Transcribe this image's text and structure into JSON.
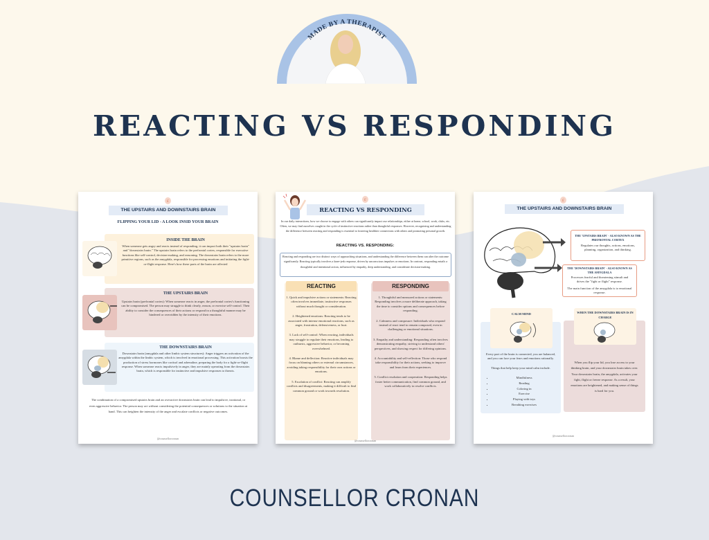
{
  "header": {
    "badge_text": "MADE BY A THERAPIST",
    "title": "REACTING VS RESPONDING"
  },
  "footer": {
    "brand": "COUNSELLOR CRONAN"
  },
  "colors": {
    "cream": "#fdf8ec",
    "grey_blue": "#e3e6ec",
    "navy": "#1e3350",
    "badge_blue": "#a9c3e6"
  },
  "pages": [
    {
      "title": "THE UPSTAIRS AND DOWNSTAIRS BRAIN",
      "subtitle": "FLIPPING YOUR LID - A LOOK INSID YOUR BRAIN",
      "sections": [
        {
          "heading": "INSIDE THE BRAIN",
          "text": "When someone gets angry and reacts instead of responding, it can impact both their \"upstairs brain\" and \"downstairs brain.\" The upstairs brain refers to the prefrontal cortex, responsible for executive functions like self-control, decision-making, and reasoning. The downstairs brain refers to the more primitive regions, such as the amygdala, responsible for processing emotions and initiating the fight-or-flight response. Here's how these parts of the brain are affected"
        },
        {
          "heading": "THE UPSTAIRS BRAIN",
          "text": "Upstairs brain (prefrontal cortex): When someone reacts in anger, the prefrontal cortex's functioning can be compromised. The person may struggle to think clearly, reason, or exercise self-control. Their ability to consider the consequences of their actions or respond in a thoughtful manner may be hindered or overridden by the intensity of their emotions."
        },
        {
          "heading": "THE DOWNSTAIRS BRAIN",
          "text": "Downstairs brain (amygdala and other limbic system structures): Anger triggers an activation of the amygdala within the limbic system, which is involved in emotional processing. This activation boosts the production of stress hormones like cortisol and adrenaline, preparing the body for a fight-or-flight response. When someone reacts impulsively in anger, they are mainly operating from the downstairs brain, which is responsible for instinctive and impulsive responses to threats."
        }
      ],
      "closing": "The combination of a compromised upstairs brain and an overactive downstairs brain can lead to impulsive, irrational, or even aggressive behavior. The person may act without considering the potential consequences or solutions to the situation at hand. This can heighten the intensity of the anger and escalate conflicts or negative outcomes.",
      "handle": "@counsellorcronan"
    },
    {
      "title": "REACTING VS RESPONDING",
      "intro": "In our daily interactions, how we choose to engage with others can significantly impact our relationships, either at home, school, work, clubs, etc. Often, we may find ourselves caught in the cycle of instinctive reactions rather than thoughtful responses. However, recognizing and understanding the difference between reacting and responding is essential to fostering healthier connections with others and promoting personal growth.",
      "subheading": "REACTING VS. RESPONDING:",
      "summary": "Reacting and responding are two distinct ways of approaching situations, and understanding the difference between them can alter the outcome significantly. Reacting typically involves a knee-jerk response, driven by unconscious impulses or emotions. In contrast, responding entails a thoughtful and intentional action, influenced by empathy, deep understanding, and considerate decision-making.",
      "reacting": {
        "heading": "REACTING",
        "items": [
          "1. Quick and impulsive actions or statements: Reacting often involves immediate, instinctive responses without much thought or consideration.",
          "2. Heightened emotions: Reacting tends to be associated with intense emotional reactions, such as anger, frustration, defensiveness, or hurt.",
          "3. Lack of self-control: When reacting, individuals may struggle to regulate their emotions, leading to outbursts, aggressive behavior, or becoming overwhelmed.",
          "4. Blame and deflection: Reactive individuals may focus on blaming others or external circumstances, avoiding taking responsibility for their own actions or emotions.",
          "5. Escalation of conflict: Reacting can amplify conflicts and disagreements, making it difficult to find common ground or work towards resolution."
        ]
      },
      "responding": {
        "heading": "RESPONDING",
        "items": [
          "1. Thoughtful and measured actions or statements: Responding involves a more deliberate approach, taking the time to consider options and consequences before responding.",
          "2. Calmness and composure: Individuals who respond instead of react tend to remain composed, even in challenging or emotional situations.",
          "3. Empathy and understanding: Responding often involves demonstrating empathy, striving to understand others' perspectives, and showing respect for differing opinions.",
          "4. Accountability and self-reflection: Those who respond take responsibility for their actions, seeking to improve and learn from their experiences.",
          "5. Conflict resolution and cooperation: Responding helps foster better communication, find common ground, and work collaboratively to resolve conflicts."
        ]
      },
      "handle": "@counsellorcronan"
    },
    {
      "title": "THE UPSTAIRS AND DOWNSTAIRS BRAIN",
      "upstairs_box": {
        "heading": "THE 'UPSTAIRS BRAIN' - ALSO KNOWN AS THE PREFRONTAL CORTEX",
        "text": "Regulates our thoughts, actions, emotions, planning, organization, and thinking."
      },
      "downstairs_box": {
        "heading": "THE 'DOWNSTAIRS BRAIN' - ALSO KNOWN AS THE AMYGDALA",
        "text": "Processes fearful and threatening stimuli and drives the \"fight or flight\" response.",
        "text2": "The main function of the amygdala is to emotional response."
      },
      "calm": {
        "heading": "CALM MIND",
        "text": "Every part of the brain is connected, you are balanced, and you can face your fears and emotions rationally.",
        "text2": "Things that help keep your mind calm include.",
        "items": [
          "Mindfulness",
          "Reading",
          "Coloring in",
          "Exercise",
          "Playing with toys",
          "Breathing exercises"
        ]
      },
      "charge": {
        "heading": "WHEN THE DOWNSTAIRS BRAIN IS IN CHARGE",
        "text": "When you flip your lid, you lose access to your thinking brain, and your downstairs brain takes over. Your downstairs brain, the amygdala, activates your fight, flight or freeze response. As a result, your emotions are heightened, and making sense of things is hard for you."
      },
      "handle": "@counsellorcronan"
    }
  ]
}
